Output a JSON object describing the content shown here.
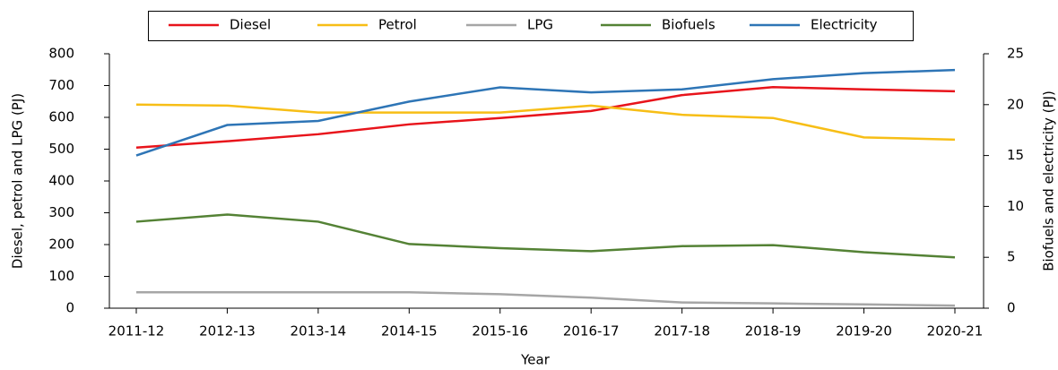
{
  "chart_data": {
    "type": "line",
    "x_label": "Year",
    "y_label": "Diesel, petrol and LPG  (PJ)",
    "y2_label": "Biofuels and electricity (PJ)",
    "categories": [
      "2011-12",
      "2012-13",
      "2013-14",
      "2014-15",
      "2015-16",
      "2016-17",
      "2017-18",
      "2018-19",
      "2019-20",
      "2020-21"
    ],
    "series": [
      {
        "name": "Diesel",
        "color": "#e8141b",
        "values": [
          505,
          525,
          547,
          578,
          598,
          620,
          670,
          695,
          688,
          682
        ]
      },
      {
        "name": "Petrol",
        "color": "#f7be16",
        "values": [
          640,
          637,
          615,
          615,
          615,
          637,
          608,
          598,
          537,
          530
        ]
      },
      {
        "name": "LPG",
        "color": "#a6a6a6",
        "values": [
          50,
          50,
          50,
          50,
          44,
          33,
          18,
          15,
          12,
          8
        ]
      },
      {
        "name": "Biofuels",
        "color": "#548235",
        "axis": "y2",
        "values": [
          8.5,
          9.2,
          8.5,
          6.3,
          5.9,
          5.6,
          6.1,
          6.2,
          5.5,
          5.0
        ]
      },
      {
        "name": "Electricity",
        "color": "#2e75b6",
        "axis": "y2",
        "values": [
          15.0,
          18.0,
          18.4,
          20.3,
          21.7,
          21.2,
          21.5,
          22.5,
          23.1,
          23.4
        ]
      }
    ],
    "ylim": [
      0,
      800
    ],
    "yticks": [
      0,
      100,
      200,
      300,
      400,
      500,
      600,
      700,
      800
    ],
    "y2lim": [
      0,
      25
    ],
    "y2ticks": [
      0,
      5,
      10,
      15,
      20,
      25
    ],
    "legend": "top"
  }
}
